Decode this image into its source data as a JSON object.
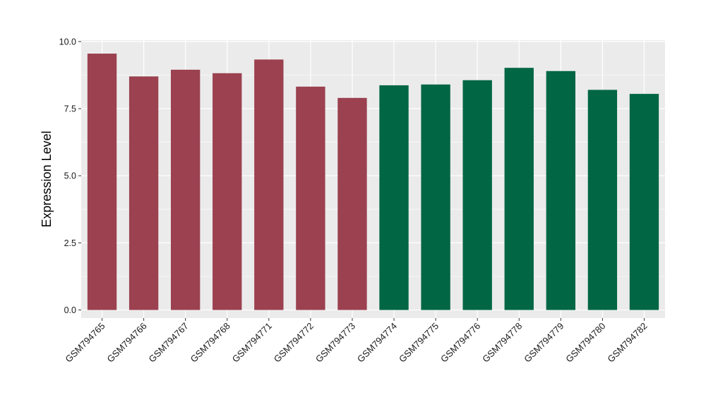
{
  "chart_data": {
    "type": "bar",
    "title": "",
    "xlabel": "",
    "ylabel": "Expression Level",
    "ylim": [
      -0.3,
      10.05
    ],
    "yticks": [
      0.0,
      2.5,
      5.0,
      7.5,
      10.0
    ],
    "ytick_labels": [
      "0.0",
      "2.5",
      "5.0",
      "7.5",
      "10.0"
    ],
    "grid": true,
    "legend": "none",
    "categories": [
      "GSM794765",
      "GSM794766",
      "GSM794767",
      "GSM794768",
      "GSM794771",
      "GSM794772",
      "GSM794773",
      "GSM794774",
      "GSM794775",
      "GSM794776",
      "GSM794778",
      "GSM794779",
      "GSM794780",
      "GSM794782"
    ],
    "values": [
      9.55,
      8.7,
      8.95,
      8.82,
      9.33,
      8.32,
      7.9,
      8.37,
      8.4,
      8.56,
      9.02,
      8.9,
      8.2,
      8.05
    ],
    "group_colors": [
      "#9b4150",
      "#9b4150",
      "#9b4150",
      "#9b4150",
      "#9b4150",
      "#9b4150",
      "#9b4150",
      "#006644",
      "#006644",
      "#006644",
      "#006644",
      "#006644",
      "#006644",
      "#006644"
    ],
    "panel_background": "#ebebeb",
    "grid_color": "#ffffff"
  }
}
